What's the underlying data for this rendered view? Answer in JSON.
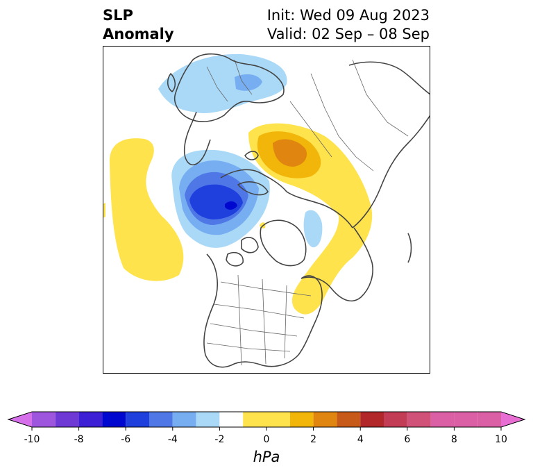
{
  "title": {
    "left_line1": "SLP",
    "left_line2": "Anomaly",
    "right_line1": "Init: Wed 09 Aug 2023",
    "right_line2": "Valid: 02 Sep – 08 Sep"
  },
  "colorbar": {
    "unit": "hPa",
    "min": -11,
    "max": 11,
    "extend": "both",
    "levels": [
      -11,
      -10,
      -9,
      -8,
      -7,
      -6,
      -5,
      -4,
      -3,
      -2,
      -1,
      1,
      2,
      3,
      4,
      5,
      6,
      7,
      8,
      9,
      10,
      11
    ],
    "colors": [
      "#d670ea",
      "#9f56df",
      "#6f39d6",
      "#3d1fd5",
      "#0008cf",
      "#2040de",
      "#4f78e6",
      "#77aef2",
      "#a9d9f7",
      "#ffffff",
      "#ffe34d",
      "#f2b60a",
      "#df8510",
      "#c85a19",
      "#b2272a",
      "#c33c55",
      "#d05279",
      "#db5fa4",
      "#e86ed4"
    ],
    "ticks": [
      "-10",
      "-8",
      "-6",
      "-4",
      "-2",
      "0",
      "2",
      "4",
      "6",
      "8",
      "10"
    ],
    "tick_values": [
      -10,
      -8,
      -6,
      -4,
      -2,
      0,
      2,
      4,
      6,
      8,
      10
    ]
  },
  "map": {
    "projection": "polar stereographic (north)",
    "anomalies": [
      {
        "sign": "positive",
        "peak_hPa": 1.5,
        "region": "North Pacific"
      },
      {
        "sign": "negative",
        "peak_hPa": -7,
        "region": "Barents Sea / Scandinavia"
      },
      {
        "sign": "positive",
        "peak_hPa": 4,
        "region": "Beaufort Sea / Arctic Alaska"
      },
      {
        "sign": "positive",
        "peak_hPa": 1.5,
        "region": "Canada / North Atlantic"
      },
      {
        "sign": "negative",
        "peak_hPa": -2,
        "region": "Northern Scandinavia / Siberia"
      },
      {
        "sign": "negative",
        "peak_hPa": -1.5,
        "region": "Hudson Bay"
      }
    ]
  }
}
